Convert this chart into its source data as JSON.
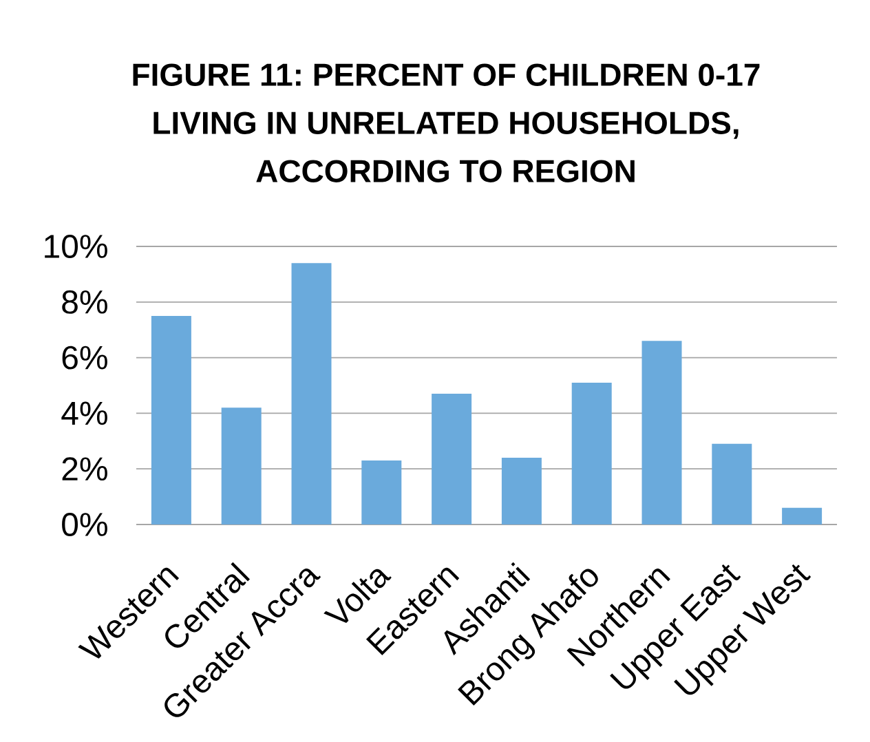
{
  "chart_data": {
    "type": "bar",
    "title": "FIGURE 11: PERCENT OF CHILDREN 0-17 LIVING IN UNRELATED HOUSEHOLDS, ACCORDING TO REGION",
    "categories": [
      "Western",
      "Central",
      "Greater Accra",
      "Volta",
      "Eastern",
      "Ashanti",
      "Brong Ahafo",
      "Northern",
      "Upper East",
      "Upper West"
    ],
    "values": [
      7.5,
      4.2,
      9.4,
      2.3,
      4.7,
      2.4,
      5.1,
      6.6,
      2.9,
      0.6
    ],
    "color": "#6aaadc",
    "ylim": [
      0,
      10
    ],
    "yticks": [
      {
        "value": 0,
        "label": "0%"
      },
      {
        "value": 2,
        "label": "2%"
      },
      {
        "value": 4,
        "label": "4%"
      },
      {
        "value": 6,
        "label": "6%"
      },
      {
        "value": 8,
        "label": "8%"
      },
      {
        "value": 10,
        "label": "10%"
      }
    ],
    "grid": "y"
  }
}
